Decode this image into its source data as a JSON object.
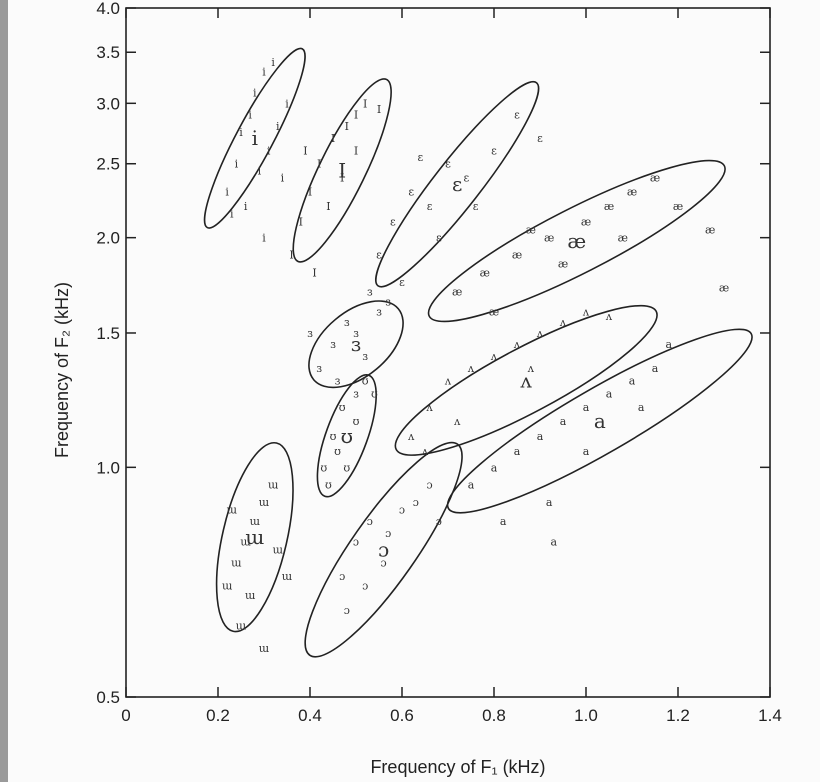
{
  "chart_data": {
    "type": "scatter",
    "xlabel": "Frequency of F₁ (kHz)",
    "ylabel": "Frequency of F₂ (kHz)",
    "xlim": [
      0,
      1.4
    ],
    "ylim": [
      0.5,
      4.0
    ],
    "yscale": "log",
    "xticks": [
      0,
      0.2,
      0.4,
      0.6,
      0.8,
      1.0,
      1.2,
      1.4
    ],
    "xtick_labels": [
      "0",
      "0.2",
      "0.4",
      "0.6",
      "0.8",
      "1.0",
      "1.2",
      "1.4"
    ],
    "yticks": [
      0.5,
      1.0,
      1.5,
      2.0,
      2.5,
      3.0,
      3.5,
      4.0
    ],
    "ytick_labels": [
      "0.5",
      "1.0",
      "1.5",
      "2.0",
      "2.5",
      "3.0",
      "3.5",
      "4.0"
    ],
    "grid": false,
    "legend": "none",
    "series": [
      {
        "name": "i",
        "label": "i",
        "center": [
          0.28,
          2.7
        ],
        "spread": [
          0.04,
          0.22
        ],
        "angle": 62,
        "points": [
          [
            0.22,
            2.3
          ],
          [
            0.24,
            2.5
          ],
          [
            0.25,
            2.75
          ],
          [
            0.27,
            2.9
          ],
          [
            0.28,
            3.1
          ],
          [
            0.3,
            3.3
          ],
          [
            0.31,
            2.6
          ],
          [
            0.33,
            2.8
          ],
          [
            0.26,
            2.2
          ],
          [
            0.3,
            2.0
          ],
          [
            0.32,
            3.4
          ],
          [
            0.35,
            3.0
          ],
          [
            0.34,
            2.4
          ],
          [
            0.29,
            2.45
          ],
          [
            0.23,
            2.15
          ]
        ]
      },
      {
        "name": "I",
        "label": "I",
        "center": [
          0.47,
          2.45
        ],
        "spread": [
          0.05,
          0.22
        ],
        "angle": 64,
        "points": [
          [
            0.36,
            1.9
          ],
          [
            0.38,
            2.1
          ],
          [
            0.4,
            2.3
          ],
          [
            0.42,
            2.5
          ],
          [
            0.45,
            2.7
          ],
          [
            0.48,
            2.8
          ],
          [
            0.5,
            2.9
          ],
          [
            0.52,
            3.0
          ],
          [
            0.44,
            2.2
          ],
          [
            0.47,
            2.4
          ],
          [
            0.41,
            1.8
          ],
          [
            0.55,
            2.95
          ],
          [
            0.5,
            2.6
          ],
          [
            0.39,
            2.6
          ]
        ]
      },
      {
        "name": "ɛ",
        "label": "ɛ",
        "center": [
          0.72,
          2.35
        ],
        "spread": [
          0.05,
          0.28
        ],
        "angle": 52,
        "points": [
          [
            0.55,
            1.9
          ],
          [
            0.58,
            2.1
          ],
          [
            0.62,
            2.3
          ],
          [
            0.66,
            2.2
          ],
          [
            0.7,
            2.5
          ],
          [
            0.74,
            2.4
          ],
          [
            0.8,
            2.6
          ],
          [
            0.85,
            2.9
          ],
          [
            0.68,
            2.0
          ],
          [
            0.6,
            1.75
          ],
          [
            0.76,
            2.2
          ],
          [
            0.9,
            2.7
          ],
          [
            0.64,
            2.55
          ]
        ]
      },
      {
        "name": "æ",
        "label": "æ",
        "center": [
          0.98,
          1.98
        ],
        "spread": [
          0.07,
          0.36
        ],
        "angle": 27,
        "points": [
          [
            0.72,
            1.7
          ],
          [
            0.78,
            1.8
          ],
          [
            0.85,
            1.9
          ],
          [
            0.92,
            2.0
          ],
          [
            1.0,
            2.1
          ],
          [
            1.05,
            2.2
          ],
          [
            1.1,
            2.3
          ],
          [
            1.15,
            2.4
          ],
          [
            0.95,
            1.85
          ],
          [
            1.08,
            2.0
          ],
          [
            0.88,
            2.05
          ],
          [
            1.2,
            2.2
          ],
          [
            0.8,
            1.6
          ],
          [
            1.27,
            2.05
          ],
          [
            1.3,
            1.72
          ]
        ]
      },
      {
        "name": "ɜ",
        "label": "ɜ",
        "center": [
          0.5,
          1.45
        ],
        "spread": [
          0.07,
          0.12
        ],
        "angle": 40,
        "points": [
          [
            0.42,
            1.35
          ],
          [
            0.45,
            1.45
          ],
          [
            0.48,
            1.55
          ],
          [
            0.5,
            1.5
          ],
          [
            0.52,
            1.4
          ],
          [
            0.55,
            1.6
          ],
          [
            0.46,
            1.3
          ],
          [
            0.4,
            1.5
          ],
          [
            0.53,
            1.7
          ],
          [
            0.57,
            1.65
          ],
          [
            0.5,
            1.25
          ]
        ]
      },
      {
        "name": "ʊ",
        "label": "ʊ",
        "center": [
          0.48,
          1.1
        ],
        "spread": [
          0.045,
          0.14
        ],
        "angle": 70,
        "points": [
          [
            0.43,
            1.0
          ],
          [
            0.45,
            1.1
          ],
          [
            0.47,
            1.2
          ],
          [
            0.5,
            1.15
          ],
          [
            0.52,
            1.3
          ],
          [
            0.48,
            1.0
          ],
          [
            0.44,
            0.95
          ],
          [
            0.54,
            1.25
          ],
          [
            0.46,
            1.05
          ]
        ]
      },
      {
        "name": "ʌ",
        "label": "ʌ",
        "center": [
          0.87,
          1.3
        ],
        "spread": [
          0.07,
          0.32
        ],
        "angle": 28,
        "points": [
          [
            0.62,
            1.1
          ],
          [
            0.66,
            1.2
          ],
          [
            0.7,
            1.3
          ],
          [
            0.75,
            1.35
          ],
          [
            0.8,
            1.4
          ],
          [
            0.85,
            1.45
          ],
          [
            0.9,
            1.5
          ],
          [
            0.95,
            1.55
          ],
          [
            1.0,
            1.6
          ],
          [
            0.72,
            1.15
          ],
          [
            0.65,
            1.05
          ],
          [
            0.88,
            1.35
          ],
          [
            1.05,
            1.58
          ]
        ]
      },
      {
        "name": "a",
        "label": "a",
        "center": [
          1.03,
          1.15
        ],
        "spread": [
          0.07,
          0.38
        ],
        "angle": 30,
        "points": [
          [
            0.75,
            0.95
          ],
          [
            0.8,
            1.0
          ],
          [
            0.85,
            1.05
          ],
          [
            0.9,
            1.1
          ],
          [
            0.95,
            1.15
          ],
          [
            1.0,
            1.2
          ],
          [
            1.05,
            1.25
          ],
          [
            1.1,
            1.3
          ],
          [
            1.15,
            1.35
          ],
          [
            0.92,
            0.9
          ],
          [
            1.0,
            1.05
          ],
          [
            1.12,
            1.2
          ],
          [
            0.82,
            0.85
          ],
          [
            1.18,
            1.45
          ],
          [
            0.93,
            0.8
          ]
        ]
      },
      {
        "name": "ɯ",
        "label": "ɯ",
        "center": [
          0.28,
          0.81
        ],
        "spread": [
          0.07,
          0.21
        ],
        "angle": 77,
        "points": [
          [
            0.22,
            0.7
          ],
          [
            0.24,
            0.75
          ],
          [
            0.26,
            0.8
          ],
          [
            0.28,
            0.85
          ],
          [
            0.3,
            0.9
          ],
          [
            0.32,
            0.95
          ],
          [
            0.25,
            0.62
          ],
          [
            0.27,
            0.68
          ],
          [
            0.33,
            0.78
          ],
          [
            0.35,
            0.72
          ],
          [
            0.23,
            0.88
          ],
          [
            0.3,
            0.58
          ]
        ]
      },
      {
        "name": "ɔ",
        "label": "ɔ",
        "center": [
          0.56,
          0.78
        ],
        "spread": [
          0.07,
          0.28
        ],
        "angle": 55,
        "points": [
          [
            0.47,
            0.72
          ],
          [
            0.5,
            0.8
          ],
          [
            0.53,
            0.85
          ],
          [
            0.56,
            0.75
          ],
          [
            0.6,
            0.88
          ],
          [
            0.63,
            0.9
          ],
          [
            0.48,
            0.65
          ],
          [
            0.52,
            0.7
          ],
          [
            0.57,
            0.82
          ],
          [
            0.66,
            0.95
          ],
          [
            0.68,
            0.85
          ]
        ]
      }
    ]
  }
}
